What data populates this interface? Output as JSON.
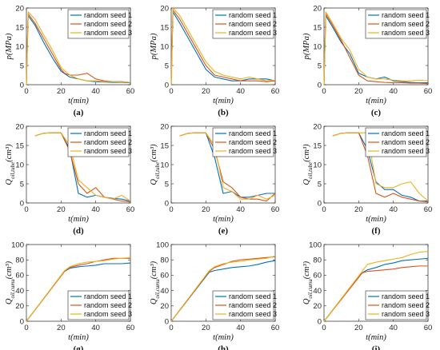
{
  "colors": {
    "seed1": "#0072BD",
    "seed2": "#D95319",
    "seed3": "#EDB120"
  },
  "chart_data": [
    {
      "type": "line",
      "panel": "(a)",
      "xlabel": "t(min)",
      "ylabel": "p(MPa)",
      "ylabel_sub": "",
      "xlim": [
        0,
        60
      ],
      "ylim": [
        0,
        20
      ],
      "xticks": [
        0,
        20,
        40,
        60
      ],
      "yticks": [
        0,
        5,
        10,
        15,
        20
      ],
      "legend": "top-right",
      "series": [
        {
          "name": "random seed 1",
          "x": [
            0,
            1,
            5,
            10,
            15,
            20,
            25,
            30,
            35,
            40,
            45,
            50,
            55,
            60
          ],
          "y": [
            0,
            18,
            15.5,
            11,
            7,
            3.5,
            2,
            1.5,
            1,
            0.8,
            0.7,
            0.6,
            0.6,
            0.5
          ]
        },
        {
          "name": "random seed 2",
          "x": [
            0,
            1,
            5,
            10,
            15,
            20,
            22,
            25,
            30,
            35,
            40,
            45,
            50,
            55,
            60
          ],
          "y": [
            0,
            18.5,
            16,
            12,
            8,
            4,
            3,
            2.5,
            2.5,
            3,
            1.5,
            1,
            0.8,
            0.8,
            0.6
          ]
        },
        {
          "name": "random seed 3",
          "x": [
            0,
            1,
            5,
            10,
            15,
            20,
            25,
            30,
            35,
            40,
            45,
            50,
            55,
            60
          ],
          "y": [
            0,
            19,
            17,
            13,
            9,
            4.5,
            2.5,
            1.5,
            1,
            1,
            0.8,
            0.8,
            0.7,
            0.6
          ]
        }
      ]
    },
    {
      "type": "line",
      "panel": "(b)",
      "xlabel": "t(min)",
      "ylabel": "p(MPa)",
      "ylabel_sub": "",
      "xlim": [
        0,
        60
      ],
      "ylim": [
        0,
        20
      ],
      "xticks": [
        0,
        20,
        40,
        60
      ],
      "yticks": [
        0,
        5,
        10,
        15,
        20
      ],
      "legend": "top-right",
      "series": [
        {
          "name": "random seed 1",
          "x": [
            0,
            1,
            5,
            10,
            15,
            20,
            25,
            30,
            35,
            40,
            45,
            50,
            55,
            60
          ],
          "y": [
            0,
            19,
            16,
            12,
            8,
            4,
            2,
            1.5,
            1,
            1,
            1.5,
            1.5,
            1.5,
            1
          ]
        },
        {
          "name": "random seed 2",
          "x": [
            0,
            1,
            5,
            10,
            15,
            20,
            25,
            30,
            35,
            40,
            45,
            50,
            55,
            60
          ],
          "y": [
            0,
            19.5,
            17,
            13,
            9,
            5,
            2.5,
            2,
            1.5,
            1,
            1,
            1,
            0.8,
            1
          ]
        },
        {
          "name": "random seed 3",
          "x": [
            0,
            1,
            5,
            10,
            15,
            20,
            25,
            30,
            35,
            40,
            45,
            50,
            55,
            60
          ],
          "y": [
            0,
            20,
            18,
            14,
            10,
            6,
            3.5,
            2.5,
            2,
            1.5,
            2,
            1.5,
            1,
            1.2
          ]
        }
      ]
    },
    {
      "type": "line",
      "panel": "(c)",
      "xlabel": "t(min)",
      "ylabel": "p(MPa)",
      "ylabel_sub": "",
      "xlim": [
        0,
        60
      ],
      "ylim": [
        0,
        20
      ],
      "xticks": [
        0,
        20,
        40,
        60
      ],
      "yticks": [
        0,
        5,
        10,
        15,
        20
      ],
      "legend": "top-right",
      "series": [
        {
          "name": "random seed 1",
          "x": [
            0,
            1,
            5,
            10,
            15,
            20,
            25,
            30,
            35,
            40,
            45,
            50,
            55,
            60
          ],
          "y": [
            0,
            18,
            15,
            11,
            8,
            3,
            2,
            1.5,
            2,
            1,
            0.8,
            0.6,
            0.5,
            0.5
          ]
        },
        {
          "name": "random seed 2",
          "x": [
            0,
            1,
            5,
            10,
            15,
            20,
            25,
            30,
            35,
            40,
            45,
            50,
            55,
            60
          ],
          "y": [
            0,
            18.5,
            15.5,
            11.5,
            7,
            2.5,
            1,
            0.8,
            0.6,
            0.5,
            0.5,
            0.4,
            0.4,
            0.3
          ]
        },
        {
          "name": "random seed 3",
          "x": [
            0,
            1,
            5,
            10,
            15,
            20,
            25,
            30,
            35,
            40,
            45,
            50,
            55,
            60
          ],
          "y": [
            0,
            19,
            16,
            12,
            9,
            4,
            2,
            1.5,
            1.5,
            1.2,
            1,
            1,
            1.2,
            1
          ]
        }
      ]
    },
    {
      "type": "line",
      "panel": "(d)",
      "xlabel": "t(min)",
      "ylabel": "Q",
      "ylabel_sub": "oil,tube",
      "ylabel_unit": "(cm³)",
      "xlim": [
        0,
        60
      ],
      "ylim": [
        0,
        20
      ],
      "xticks": [
        0,
        20,
        40,
        60
      ],
      "yticks": [
        0,
        5,
        10,
        15,
        20
      ],
      "legend": "top-right",
      "series": [
        {
          "name": "random seed 1",
          "x": [
            5,
            10,
            15,
            20,
            25,
            30,
            35,
            40,
            45,
            50,
            55,
            60
          ],
          "y": [
            17.5,
            18.2,
            18.3,
            18.3,
            14,
            2.5,
            1.5,
            2,
            1.5,
            1.2,
            1,
            0.5
          ]
        },
        {
          "name": "random seed 2",
          "x": [
            5,
            10,
            15,
            20,
            25,
            30,
            35,
            40,
            45,
            50,
            55,
            60
          ],
          "y": [
            17.5,
            18.2,
            18.3,
            18.3,
            13.5,
            5,
            2.5,
            4,
            1.5,
            1,
            0.5,
            0.3
          ]
        },
        {
          "name": "random seed 3",
          "x": [
            5,
            10,
            15,
            20,
            25,
            30,
            35,
            40,
            45,
            50,
            55,
            60
          ],
          "y": [
            17.5,
            18.2,
            18.3,
            18.3,
            15,
            6,
            4,
            2,
            1.5,
            1,
            2,
            0.5
          ]
        }
      ]
    },
    {
      "type": "line",
      "panel": "(e)",
      "xlabel": "t(min)",
      "ylabel": "Q",
      "ylabel_sub": "oil,tube",
      "ylabel_unit": "(cm³)",
      "xlim": [
        0,
        60
      ],
      "ylim": [
        0,
        20
      ],
      "xticks": [
        0,
        20,
        40,
        60
      ],
      "yticks": [
        0,
        5,
        10,
        15,
        20
      ],
      "legend": "top-right",
      "series": [
        {
          "name": "random seed 1",
          "x": [
            5,
            10,
            15,
            20,
            25,
            30,
            35,
            40,
            45,
            50,
            55,
            60
          ],
          "y": [
            17.5,
            18.2,
            18.3,
            18.3,
            12,
            2.5,
            3,
            1.5,
            1.5,
            2,
            2.5,
            2.5
          ]
        },
        {
          "name": "random seed 2",
          "x": [
            5,
            10,
            15,
            20,
            25,
            30,
            35,
            40,
            45,
            50,
            55,
            60
          ],
          "y": [
            17.5,
            18.2,
            18.3,
            18.3,
            14,
            5.5,
            4,
            1.5,
            1,
            1,
            0.5,
            2.5
          ]
        },
        {
          "name": "random seed 3",
          "x": [
            5,
            10,
            15,
            20,
            25,
            30,
            35,
            40,
            45,
            50,
            55,
            60
          ],
          "y": [
            17.5,
            18.2,
            18.3,
            18.3,
            15,
            4,
            3,
            1,
            1,
            2,
            1,
            2
          ]
        }
      ]
    },
    {
      "type": "line",
      "panel": "(f)",
      "xlabel": "t(min)",
      "ylabel": "Q",
      "ylabel_sub": "oil,tube",
      "ylabel_unit": "(cm³)",
      "xlim": [
        0,
        60
      ],
      "ylim": [
        0,
        20
      ],
      "xticks": [
        0,
        20,
        40,
        60
      ],
      "yticks": [
        0,
        5,
        10,
        15,
        20
      ],
      "legend": "top-right",
      "series": [
        {
          "name": "random seed 1",
          "x": [
            5,
            10,
            15,
            20,
            25,
            30,
            35,
            40,
            45,
            50,
            55,
            60
          ],
          "y": [
            17.5,
            18.2,
            18.3,
            18.3,
            14,
            5.5,
            3.5,
            3.5,
            2,
            1.5,
            0.5,
            0.5
          ]
        },
        {
          "name": "random seed 2",
          "x": [
            5,
            10,
            15,
            20,
            25,
            30,
            35,
            40,
            45,
            50,
            55,
            60
          ],
          "y": [
            17.5,
            18.2,
            18.3,
            18.3,
            12.5,
            2.5,
            1.5,
            2.5,
            1.5,
            1,
            0.5,
            0.3
          ]
        },
        {
          "name": "random seed 3",
          "x": [
            5,
            10,
            15,
            20,
            25,
            30,
            35,
            40,
            45,
            50,
            55,
            60
          ],
          "y": [
            17.5,
            18.2,
            18.3,
            18.3,
            18.3,
            5,
            4,
            4,
            5,
            5.5,
            2.5,
            0.5
          ]
        }
      ]
    },
    {
      "type": "line",
      "panel": "(g)",
      "xlabel": "t(min)",
      "ylabel": "Q",
      "ylabel_sub": "oil,cumu",
      "ylabel_unit": "(cm³)",
      "xlim": [
        0,
        60
      ],
      "ylim": [
        0,
        100
      ],
      "xticks": [
        0,
        20,
        40,
        60
      ],
      "yticks": [
        0,
        20,
        40,
        60,
        80,
        100
      ],
      "legend": "bottom-right",
      "series": [
        {
          "name": "random seed 1",
          "x": [
            0,
            22,
            25,
            30,
            35,
            40,
            45,
            50,
            55,
            60
          ],
          "y": [
            0,
            65,
            69,
            71,
            72,
            73,
            75,
            75,
            75,
            76
          ]
        },
        {
          "name": "random seed 2",
          "x": [
            0,
            22,
            25,
            30,
            35,
            40,
            45,
            50,
            55,
            60
          ],
          "y": [
            0,
            65,
            70,
            73,
            75,
            78,
            80,
            82,
            82,
            82
          ]
        },
        {
          "name": "random seed 3",
          "x": [
            0,
            22,
            25,
            30,
            35,
            40,
            45,
            50,
            55,
            60
          ],
          "y": [
            0,
            66,
            71,
            75,
            77,
            78,
            79,
            81,
            82,
            83
          ]
        }
      ]
    },
    {
      "type": "line",
      "panel": "(h)",
      "xlabel": "t(min)",
      "ylabel": "Q",
      "ylabel_sub": "oil,cumu",
      "ylabel_unit": "(cm³)",
      "xlim": [
        0,
        60
      ],
      "ylim": [
        0,
        100
      ],
      "xticks": [
        0,
        20,
        40,
        60
      ],
      "yticks": [
        0,
        20,
        40,
        60,
        80,
        100
      ],
      "legend": "bottom-right",
      "series": [
        {
          "name": "random seed 1",
          "x": [
            0,
            22,
            25,
            30,
            35,
            40,
            45,
            50,
            55,
            60
          ],
          "y": [
            0,
            64,
            66,
            68,
            70,
            71,
            72,
            74,
            77,
            79
          ]
        },
        {
          "name": "random seed 2",
          "x": [
            0,
            22,
            25,
            30,
            35,
            40,
            45,
            50,
            55,
            60
          ],
          "y": [
            0,
            65,
            70,
            74,
            78,
            80,
            81,
            82,
            83,
            84
          ]
        },
        {
          "name": "random seed 3",
          "x": [
            0,
            22,
            25,
            30,
            35,
            40,
            45,
            50,
            55,
            60
          ],
          "y": [
            0,
            66,
            71,
            75,
            77,
            78,
            80,
            81,
            82,
            85
          ]
        }
      ]
    },
    {
      "type": "line",
      "panel": "(i)",
      "xlabel": "t(min)",
      "ylabel": "Q",
      "ylabel_sub": "oil,cumu",
      "ylabel_unit": "(cm³)",
      "xlim": [
        0,
        60
      ],
      "ylim": [
        0,
        100
      ],
      "xticks": [
        0,
        20,
        40,
        60
      ],
      "yticks": [
        0,
        20,
        40,
        60,
        80,
        100
      ],
      "legend": "bottom-right",
      "series": [
        {
          "name": "random seed 1",
          "x": [
            0,
            22,
            25,
            30,
            35,
            40,
            45,
            50,
            55,
            60
          ],
          "y": [
            0,
            63,
            67,
            70,
            74,
            76,
            79,
            80,
            81,
            82
          ]
        },
        {
          "name": "random seed 2",
          "x": [
            0,
            22,
            25,
            30,
            35,
            40,
            45,
            50,
            55,
            60
          ],
          "y": [
            0,
            63,
            65,
            66,
            67,
            68,
            70,
            71,
            72,
            72
          ]
        },
        {
          "name": "random seed 3",
          "x": [
            0,
            22,
            25,
            30,
            35,
            40,
            45,
            50,
            55,
            60
          ],
          "y": [
            0,
            65,
            74,
            77,
            79,
            81,
            83,
            87,
            90,
            91
          ]
        }
      ]
    }
  ]
}
